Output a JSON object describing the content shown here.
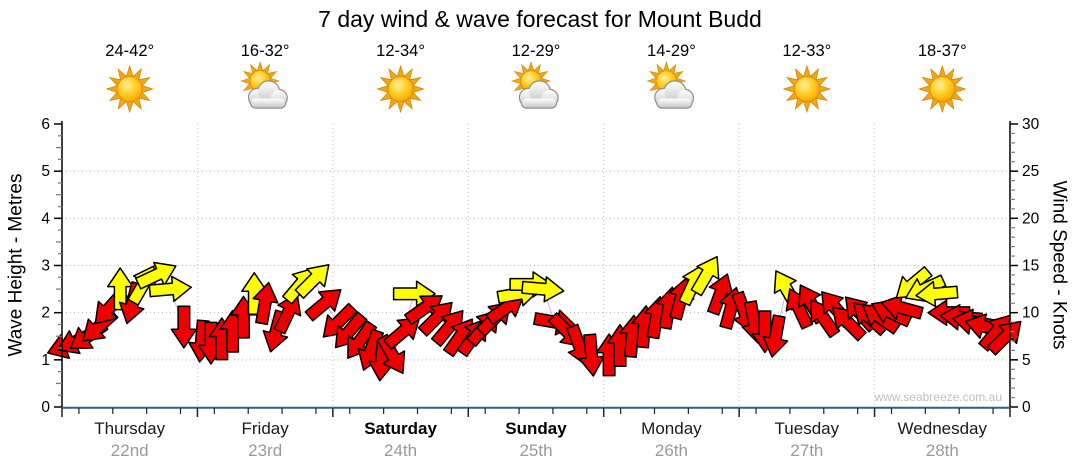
{
  "title": "7 day wind & wave forecast for Mount Budd",
  "watermark": "www.seabreeze.com.au",
  "chart_data": {
    "type": "wind-arrows",
    "title": "7 day wind & wave forecast for Mount Budd",
    "left_axis": {
      "label": "Wave Height - Metres",
      "min": 0,
      "max": 6,
      "major_ticks": [
        0,
        1,
        2,
        3,
        4,
        5,
        6
      ],
      "minor_step": 0.25
    },
    "right_axis": {
      "label": "Wind Speed - Knots",
      "min": 0,
      "max": 30,
      "major_ticks": [
        0,
        5,
        10,
        15,
        20,
        25,
        30
      ],
      "minor_step": 1
    },
    "grid": {
      "h_gridlines_metres": [
        1,
        2,
        3,
        4,
        5
      ],
      "v_gridlines_at_day_boundaries": true
    },
    "days": [
      {
        "name": "Thursday",
        "date": "22nd",
        "temp": "24-42°",
        "icon": "sunny",
        "bold": false
      },
      {
        "name": "Friday",
        "date": "23rd",
        "temp": "16-32°",
        "icon": "partly-cloudy",
        "bold": false
      },
      {
        "name": "Saturday",
        "date": "24th",
        "temp": "12-34°",
        "icon": "sunny",
        "bold": true
      },
      {
        "name": "Sunday",
        "date": "25th",
        "temp": "12-29°",
        "icon": "partly-cloudy",
        "bold": true
      },
      {
        "name": "Monday",
        "date": "26th",
        "temp": "14-29°",
        "icon": "partly-cloudy",
        "bold": false
      },
      {
        "name": "Tuesday",
        "date": "27th",
        "temp": "12-33°",
        "icon": "sunny",
        "bold": false
      },
      {
        "name": "Wednesday",
        "date": "28th",
        "temp": "18-37°",
        "icon": "sunny",
        "bold": false
      }
    ],
    "dir_convention": "degrees clockwise on screen, 0 = pointing up",
    "arrows": [
      {
        "d": 0,
        "f": 0.04,
        "kn": 6.5,
        "dir": 250,
        "c": "red"
      },
      {
        "d": 0,
        "f": 0.11,
        "kn": 7,
        "dir": 245,
        "c": "red"
      },
      {
        "d": 0,
        "f": 0.19,
        "kn": 7.5,
        "dir": 235,
        "c": "red"
      },
      {
        "d": 0,
        "f": 0.27,
        "kn": 8.5,
        "dir": 228,
        "c": "red"
      },
      {
        "d": 0,
        "f": 0.35,
        "kn": 10.5,
        "dir": 222,
        "c": "red"
      },
      {
        "d": 0,
        "f": 0.43,
        "kn": 12.5,
        "dir": 0,
        "c": "yellow"
      },
      {
        "d": 0,
        "f": 0.52,
        "kn": 11,
        "dir": 195,
        "c": "red"
      },
      {
        "d": 0,
        "f": 0.6,
        "kn": 13,
        "dir": 30,
        "c": "yellow"
      },
      {
        "d": 0,
        "f": 0.7,
        "kn": 14,
        "dir": 65,
        "c": "yellow"
      },
      {
        "d": 0,
        "f": 0.8,
        "kn": 12.5,
        "dir": 85,
        "c": "yellow"
      },
      {
        "d": 0,
        "f": 0.9,
        "kn": 8.5,
        "dir": 180,
        "c": "red"
      },
      {
        "d": 1,
        "f": 0.03,
        "kn": 7,
        "dir": 185,
        "c": "red"
      },
      {
        "d": 1,
        "f": 0.1,
        "kn": 6.8,
        "dir": 180,
        "c": "red"
      },
      {
        "d": 1,
        "f": 0.18,
        "kn": 7.2,
        "dir": 0,
        "c": "red"
      },
      {
        "d": 1,
        "f": 0.26,
        "kn": 8,
        "dir": 0,
        "c": "red"
      },
      {
        "d": 1,
        "f": 0.34,
        "kn": 9.5,
        "dir": 0,
        "c": "red"
      },
      {
        "d": 1,
        "f": 0.42,
        "kn": 12,
        "dir": 0,
        "c": "yellow"
      },
      {
        "d": 1,
        "f": 0.5,
        "kn": 11,
        "dir": 10,
        "c": "red"
      },
      {
        "d": 1,
        "f": 0.58,
        "kn": 8,
        "dir": 195,
        "c": "red"
      },
      {
        "d": 1,
        "f": 0.67,
        "kn": 10,
        "dir": 25,
        "c": "red"
      },
      {
        "d": 1,
        "f": 0.76,
        "kn": 13,
        "dir": 40,
        "c": "yellow"
      },
      {
        "d": 1,
        "f": 0.86,
        "kn": 13.5,
        "dir": 45,
        "c": "yellow"
      },
      {
        "d": 1,
        "f": 0.94,
        "kn": 11,
        "dir": 50,
        "c": "red"
      },
      {
        "d": 2,
        "f": 0.04,
        "kn": 9,
        "dir": 225,
        "c": "red"
      },
      {
        "d": 2,
        "f": 0.12,
        "kn": 8,
        "dir": 220,
        "c": "red"
      },
      {
        "d": 2,
        "f": 0.2,
        "kn": 7,
        "dir": 215,
        "c": "red"
      },
      {
        "d": 2,
        "f": 0.28,
        "kn": 6,
        "dir": 200,
        "c": "red"
      },
      {
        "d": 2,
        "f": 0.36,
        "kn": 5,
        "dir": 185,
        "c": "red"
      },
      {
        "d": 2,
        "f": 0.44,
        "kn": 5.5,
        "dir": 150,
        "c": "red"
      },
      {
        "d": 2,
        "f": 0.52,
        "kn": 8,
        "dir": 50,
        "c": "red"
      },
      {
        "d": 2,
        "f": 0.6,
        "kn": 12,
        "dir": 90,
        "c": "yellow"
      },
      {
        "d": 2,
        "f": 0.68,
        "kn": 10.5,
        "dir": 55,
        "c": "red"
      },
      {
        "d": 2,
        "f": 0.77,
        "kn": 9.5,
        "dir": 45,
        "c": "red"
      },
      {
        "d": 2,
        "f": 0.86,
        "kn": 8.5,
        "dir": 40,
        "c": "red"
      },
      {
        "d": 2,
        "f": 0.94,
        "kn": 7.5,
        "dir": 35,
        "c": "red"
      },
      {
        "d": 3,
        "f": 0.04,
        "kn": 7.5,
        "dir": 35,
        "c": "red"
      },
      {
        "d": 3,
        "f": 0.12,
        "kn": 8.5,
        "dir": 40,
        "c": "red"
      },
      {
        "d": 3,
        "f": 0.2,
        "kn": 9.5,
        "dir": 45,
        "c": "red"
      },
      {
        "d": 3,
        "f": 0.28,
        "kn": 10.5,
        "dir": 55,
        "c": "red"
      },
      {
        "d": 3,
        "f": 0.37,
        "kn": 12,
        "dir": 80,
        "c": "yellow"
      },
      {
        "d": 3,
        "f": 0.46,
        "kn": 13,
        "dir": 90,
        "c": "yellow"
      },
      {
        "d": 3,
        "f": 0.55,
        "kn": 12.5,
        "dir": 95,
        "c": "yellow"
      },
      {
        "d": 3,
        "f": 0.64,
        "kn": 9,
        "dir": 100,
        "c": "red"
      },
      {
        "d": 3,
        "f": 0.73,
        "kn": 8,
        "dir": 135,
        "c": "red"
      },
      {
        "d": 3,
        "f": 0.82,
        "kn": 6.5,
        "dir": 160,
        "c": "red"
      },
      {
        "d": 3,
        "f": 0.91,
        "kn": 5.5,
        "dir": 175,
        "c": "red"
      },
      {
        "d": 4,
        "f": 0.04,
        "kn": 5.5,
        "dir": 0,
        "c": "red"
      },
      {
        "d": 4,
        "f": 0.12,
        "kn": 6.5,
        "dir": 0,
        "c": "red"
      },
      {
        "d": 4,
        "f": 0.21,
        "kn": 7.5,
        "dir": 5,
        "c": "red"
      },
      {
        "d": 4,
        "f": 0.3,
        "kn": 8.5,
        "dir": 5,
        "c": "red"
      },
      {
        "d": 4,
        "f": 0.39,
        "kn": 9.5,
        "dir": 10,
        "c": "red"
      },
      {
        "d": 4,
        "f": 0.48,
        "kn": 10.5,
        "dir": 10,
        "c": "red"
      },
      {
        "d": 4,
        "f": 0.57,
        "kn": 11.5,
        "dir": 15,
        "c": "red"
      },
      {
        "d": 4,
        "f": 0.66,
        "kn": 13,
        "dir": 25,
        "c": "yellow"
      },
      {
        "d": 4,
        "f": 0.76,
        "kn": 14,
        "dir": 30,
        "c": "yellow"
      },
      {
        "d": 4,
        "f": 0.86,
        "kn": 12,
        "dir": 20,
        "c": "red"
      },
      {
        "d": 4,
        "f": 0.94,
        "kn": 10.5,
        "dir": 15,
        "c": "red"
      },
      {
        "d": 5,
        "f": 0.04,
        "kn": 10,
        "dir": 160,
        "c": "red"
      },
      {
        "d": 5,
        "f": 0.11,
        "kn": 9,
        "dir": 170,
        "c": "red"
      },
      {
        "d": 5,
        "f": 0.19,
        "kn": 8,
        "dir": 180,
        "c": "red"
      },
      {
        "d": 5,
        "f": 0.27,
        "kn": 7.5,
        "dir": 190,
        "c": "red"
      },
      {
        "d": 5,
        "f": 0.35,
        "kn": 12.5,
        "dir": 330,
        "c": "yellow"
      },
      {
        "d": 5,
        "f": 0.44,
        "kn": 10.5,
        "dir": 335,
        "c": "red"
      },
      {
        "d": 5,
        "f": 0.53,
        "kn": 11,
        "dir": 330,
        "c": "red"
      },
      {
        "d": 5,
        "f": 0.62,
        "kn": 9.5,
        "dir": 325,
        "c": "red"
      },
      {
        "d": 5,
        "f": 0.71,
        "kn": 10.5,
        "dir": 320,
        "c": "red"
      },
      {
        "d": 5,
        "f": 0.8,
        "kn": 9,
        "dir": 315,
        "c": "red"
      },
      {
        "d": 5,
        "f": 0.89,
        "kn": 10,
        "dir": 318,
        "c": "red"
      },
      {
        "d": 5,
        "f": 0.96,
        "kn": 9.5,
        "dir": 312,
        "c": "red"
      },
      {
        "d": 6,
        "f": 0.04,
        "kn": 9.5,
        "dir": 305,
        "c": "red"
      },
      {
        "d": 6,
        "f": 0.12,
        "kn": 10,
        "dir": 295,
        "c": "red"
      },
      {
        "d": 6,
        "f": 0.2,
        "kn": 10.5,
        "dir": 285,
        "c": "red"
      },
      {
        "d": 6,
        "f": 0.28,
        "kn": 13,
        "dir": 230,
        "c": "yellow"
      },
      {
        "d": 6,
        "f": 0.37,
        "kn": 12.5,
        "dir": 245,
        "c": "yellow"
      },
      {
        "d": 6,
        "f": 0.46,
        "kn": 12,
        "dir": 265,
        "c": "yellow"
      },
      {
        "d": 6,
        "f": 0.55,
        "kn": 10,
        "dir": 270,
        "c": "red"
      },
      {
        "d": 6,
        "f": 0.64,
        "kn": 9.5,
        "dir": 275,
        "c": "red"
      },
      {
        "d": 6,
        "f": 0.73,
        "kn": 9,
        "dir": 280,
        "c": "red"
      },
      {
        "d": 6,
        "f": 0.82,
        "kn": 8.5,
        "dir": 285,
        "c": "red"
      },
      {
        "d": 6,
        "f": 0.9,
        "kn": 8,
        "dir": 40,
        "c": "red"
      },
      {
        "d": 6,
        "f": 0.97,
        "kn": 7.5,
        "dir": 45,
        "c": "red"
      }
    ],
    "colors": {
      "arrow_red": "#ee0000",
      "arrow_yellow": "#ffff00",
      "arrow_outline": "#000000",
      "grid": "#b5b5b5",
      "axis": "#000000",
      "bottom_axis": "#2e5f8c",
      "date_text": "#999999",
      "watermark": "#c0c0c0",
      "connector_line": "#c8c8c8"
    }
  }
}
